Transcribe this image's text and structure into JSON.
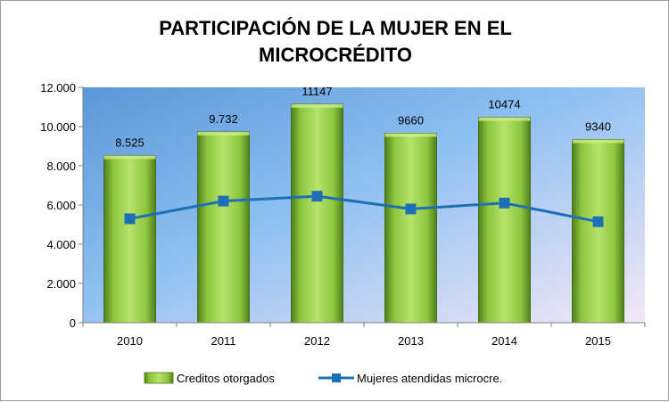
{
  "chart_data": {
    "type": "bar",
    "title": "PARTICIPACIÓN DE LA MUJER EN EL MICROCRÉDITO",
    "title_lines": [
      "PARTICIPACIÓN DE LA MUJER EN EL",
      "MICROCRÉDITO"
    ],
    "categories": [
      "2010",
      "2011",
      "2012",
      "2013",
      "2014",
      "2015"
    ],
    "ylim": [
      0,
      12000
    ],
    "yticks": [
      0,
      2000,
      4000,
      6000,
      8000,
      10000,
      12000
    ],
    "ytick_labels": [
      "0",
      "2.000",
      "4.000",
      "6.000",
      "8.000",
      "10.000",
      "12.000"
    ],
    "legend_position": "bottom",
    "series": [
      {
        "name": "Creditos otorgados",
        "kind": "bar",
        "color": "#92d050",
        "values": [
          8525,
          9732,
          11147,
          9660,
          10474,
          9340
        ],
        "data_labels": [
          "8.525",
          "9.732",
          "11147",
          "9660",
          "10474",
          "9340"
        ]
      },
      {
        "name": "Mujeres atendidas microcre.",
        "kind": "line",
        "color": "#1f6fb4",
        "values": [
          5300,
          6200,
          6450,
          5800,
          6100,
          5150
        ]
      }
    ]
  }
}
